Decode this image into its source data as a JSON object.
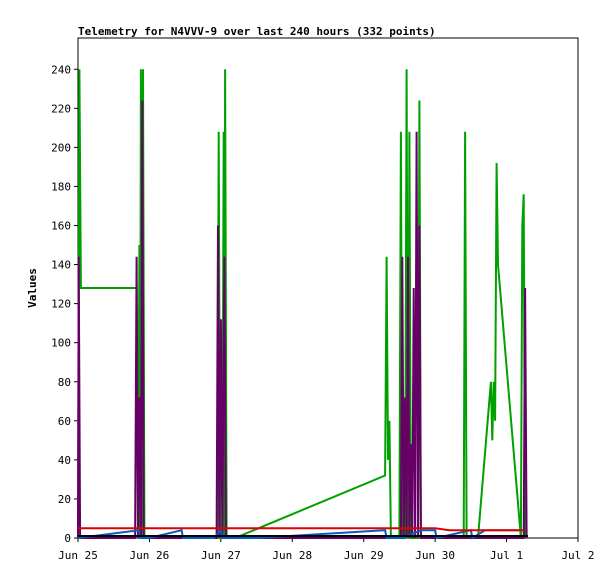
{
  "chart_data": {
    "type": "line",
    "title": "Telemetry for N4VVV-9 over last 240 hours (332 points)",
    "ylabel": "Values",
    "xlabel": "",
    "x_ticks": [
      "Jun 25",
      "Jun 26",
      "Jun 27",
      "Jun 28",
      "Jun 29",
      "Jun 30",
      "Jul 1",
      "Jul 2"
    ],
    "y_ticks": [
      0,
      20,
      40,
      60,
      80,
      100,
      120,
      140,
      160,
      180,
      200,
      220,
      240
    ],
    "xlim": [
      0,
      7.0
    ],
    "ylim": [
      0,
      256
    ],
    "legend": "none",
    "grid": false,
    "series": [
      {
        "color": "#00a000",
        "points": [
          [
            0.0,
            0
          ],
          [
            0.02,
            240
          ],
          [
            0.04,
            128
          ],
          [
            0.82,
            128
          ],
          [
            0.84,
            0
          ],
          [
            0.86,
            150
          ],
          [
            0.87,
            0
          ],
          [
            0.88,
            240
          ],
          [
            0.9,
            0
          ],
          [
            0.91,
            240
          ],
          [
            0.93,
            0
          ],
          [
            1.95,
            0
          ],
          [
            1.97,
            208
          ],
          [
            1.99,
            0
          ],
          [
            2.02,
            0
          ],
          [
            2.04,
            208
          ],
          [
            2.05,
            0
          ],
          [
            2.06,
            240
          ],
          [
            2.08,
            0
          ],
          [
            2.2,
            0
          ],
          [
            4.3,
            32
          ],
          [
            4.32,
            144
          ],
          [
            4.34,
            40
          ],
          [
            4.36,
            60
          ],
          [
            4.38,
            0
          ],
          [
            4.5,
            0
          ],
          [
            4.52,
            208
          ],
          [
            4.54,
            0
          ],
          [
            4.58,
            0
          ],
          [
            4.6,
            240
          ],
          [
            4.62,
            0
          ],
          [
            4.64,
            208
          ],
          [
            4.66,
            0
          ],
          [
            4.76,
            0
          ],
          [
            4.78,
            224
          ],
          [
            4.8,
            0
          ],
          [
            5.4,
            0
          ],
          [
            5.42,
            208
          ],
          [
            5.44,
            0
          ],
          [
            5.6,
            0
          ],
          [
            5.78,
            80
          ],
          [
            5.8,
            50
          ],
          [
            5.82,
            80
          ],
          [
            5.84,
            60
          ],
          [
            5.86,
            192
          ],
          [
            5.88,
            140
          ],
          [
            6.2,
            0
          ],
          [
            6.22,
            160
          ],
          [
            6.24,
            176
          ],
          [
            6.26,
            0
          ]
        ]
      },
      {
        "color": "#660066",
        "points": [
          [
            0.0,
            0
          ],
          [
            0.01,
            144
          ],
          [
            0.03,
            0
          ],
          [
            0.8,
            0
          ],
          [
            0.82,
            144
          ],
          [
            0.84,
            0
          ],
          [
            0.86,
            72
          ],
          [
            0.88,
            0
          ],
          [
            0.9,
            224
          ],
          [
            0.92,
            0
          ],
          [
            1.94,
            0
          ],
          [
            1.96,
            160
          ],
          [
            1.98,
            0
          ],
          [
            2.0,
            112
          ],
          [
            2.02,
            0
          ],
          [
            2.05,
            144
          ],
          [
            2.07,
            0
          ],
          [
            4.52,
            0
          ],
          [
            4.54,
            144
          ],
          [
            4.56,
            0
          ],
          [
            4.58,
            72
          ],
          [
            4.6,
            0
          ],
          [
            4.62,
            144
          ],
          [
            4.64,
            0
          ],
          [
            4.66,
            48
          ],
          [
            4.68,
            0
          ],
          [
            4.7,
            128
          ],
          [
            4.72,
            0
          ],
          [
            4.74,
            208
          ],
          [
            4.76,
            0
          ],
          [
            4.78,
            160
          ],
          [
            4.8,
            0
          ],
          [
            6.24,
            0
          ],
          [
            6.26,
            128
          ],
          [
            6.28,
            0
          ]
        ]
      },
      {
        "color": "#0060c0",
        "points": [
          [
            0.0,
            0
          ],
          [
            0.85,
            4
          ],
          [
            0.87,
            0
          ],
          [
            1.0,
            0
          ],
          [
            1.45,
            4
          ],
          [
            1.47,
            0
          ],
          [
            1.9,
            0
          ],
          [
            2.0,
            4
          ],
          [
            2.02,
            0
          ],
          [
            2.5,
            0
          ],
          [
            4.3,
            4
          ],
          [
            4.32,
            0
          ],
          [
            4.55,
            0
          ],
          [
            4.8,
            4
          ],
          [
            5.0,
            4
          ],
          [
            5.02,
            0
          ],
          [
            5.5,
            4
          ],
          [
            5.52,
            0
          ],
          [
            5.7,
            4
          ],
          [
            6.24,
            4
          ]
        ]
      },
      {
        "color": "#e00000",
        "points": [
          [
            0.0,
            5
          ],
          [
            5.0,
            5
          ],
          [
            5.2,
            4
          ],
          [
            6.24,
            4
          ]
        ]
      },
      {
        "color": "#000000",
        "points": [
          [
            0.0,
            1
          ],
          [
            6.3,
            1
          ]
        ]
      }
    ]
  }
}
